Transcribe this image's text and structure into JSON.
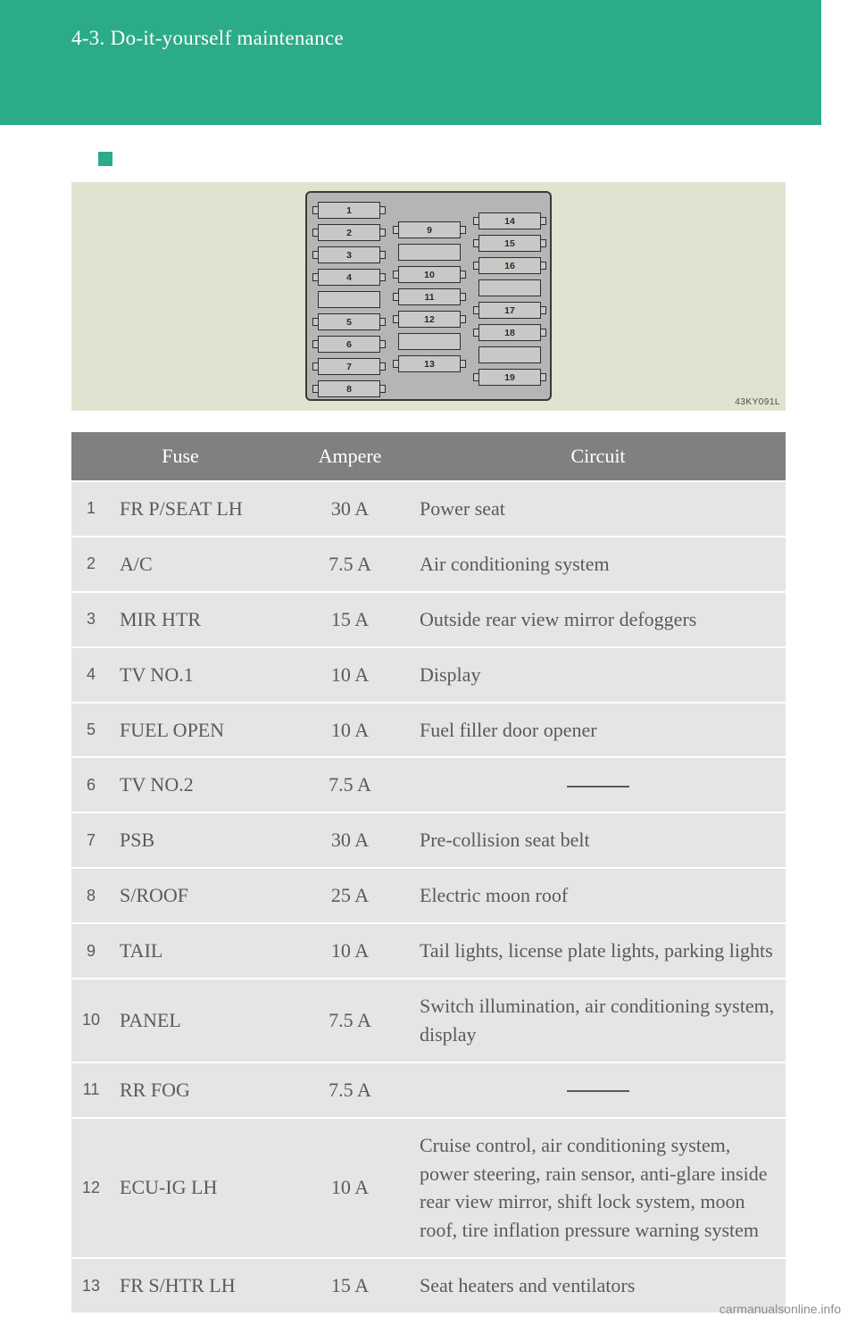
{
  "header": {
    "section_label": "4-3. Do-it-yourself maintenance"
  },
  "diagram": {
    "image_code": "43KY091L",
    "left_col": [
      "1",
      "2",
      "3",
      "4",
      "",
      "5",
      "6",
      "7",
      "8"
    ],
    "mid_col": [
      "9",
      "",
      "10",
      "11",
      "12",
      "",
      "13"
    ],
    "right_col": [
      "14",
      "15",
      "16",
      "",
      "17",
      "18",
      "",
      "19"
    ],
    "background_color": "#e2e2d1",
    "panel_color": "#b5b6b4",
    "slot_color": "#c8c9c6",
    "outline_color": "#3a3a38"
  },
  "table": {
    "headers": {
      "fuse": "Fuse",
      "ampere": "Ampere",
      "circuit": "Circuit"
    },
    "rows": [
      {
        "n": "1",
        "fuse": "FR P/SEAT LH",
        "amp": "30 A",
        "circuit": "Power seat"
      },
      {
        "n": "2",
        "fuse": "A/C",
        "amp": "7.5 A",
        "circuit": "Air conditioning system"
      },
      {
        "n": "3",
        "fuse": "MIR HTR",
        "amp": "15 A",
        "circuit": "Outside rear view mirror defoggers"
      },
      {
        "n": "4",
        "fuse": "TV NO.1",
        "amp": "10 A",
        "circuit": "Display"
      },
      {
        "n": "5",
        "fuse": "FUEL OPEN",
        "amp": "10 A",
        "circuit": "Fuel filler door opener"
      },
      {
        "n": "6",
        "fuse": "TV NO.2",
        "amp": "7.5 A",
        "circuit": "—"
      },
      {
        "n": "7",
        "fuse": "PSB",
        "amp": "30 A",
        "circuit": "Pre-collision seat belt"
      },
      {
        "n": "8",
        "fuse": "S/ROOF",
        "amp": "25 A",
        "circuit": "Electric moon roof"
      },
      {
        "n": "9",
        "fuse": "TAIL",
        "amp": "10 A",
        "circuit": "Tail lights, license plate lights, parking lights"
      },
      {
        "n": "10",
        "fuse": "PANEL",
        "amp": "7.5 A",
        "circuit": "Switch illumination, air conditioning system, display"
      },
      {
        "n": "11",
        "fuse": "RR FOG",
        "amp": "7.5 A",
        "circuit": "—"
      },
      {
        "n": "12",
        "fuse": "ECU-IG LH",
        "amp": "10 A",
        "circuit": "Cruise control, air conditioning sys­tem, power steering, rain sensor, anti-glare inside rear view mirror, shift lock system, moon roof, tire inflation pres­sure warning system"
      },
      {
        "n": "13",
        "fuse": "FR S/HTR LH",
        "amp": "15 A",
        "circuit": "Seat heaters and ventilators"
      }
    ],
    "header_bg": "#808080",
    "header_fg": "#ffffff",
    "row_bg": "#e5e5e5",
    "row_fg": "#5a5a5a"
  },
  "watermark": "carmanualsonline.info",
  "colors": {
    "accent": "#2cab88"
  }
}
